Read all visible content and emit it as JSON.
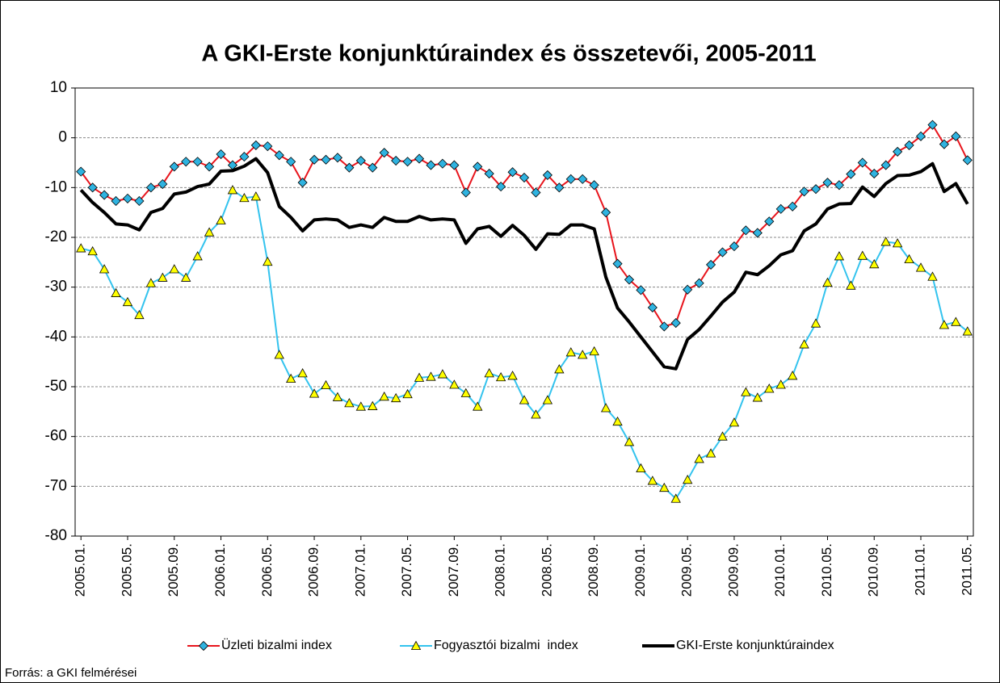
{
  "chart_data": {
    "type": "line",
    "title": "A GKI-Erste konjunktúraindex és összetevői, 2005-2011",
    "source": "Forrás: a GKI felmérései",
    "categories": [
      "2005.01.",
      null,
      null,
      null,
      "2005.05.",
      null,
      null,
      null,
      "2005.09.",
      null,
      null,
      null,
      "2006.01.",
      null,
      null,
      null,
      "2006.05.",
      null,
      null,
      null,
      "2006.09.",
      null,
      null,
      null,
      "2007.01.",
      null,
      null,
      null,
      "2007.05.",
      null,
      null,
      null,
      "2007.09.",
      null,
      null,
      null,
      "2008.01.",
      null,
      null,
      null,
      "2008.05.",
      null,
      null,
      null,
      "2008.09.",
      null,
      null,
      null,
      "2009.01.",
      null,
      null,
      null,
      "2009.05.",
      null,
      null,
      null,
      "2009.09.",
      null,
      null,
      null,
      "2010.01.",
      null,
      null,
      null,
      "2010.05.",
      null,
      null,
      null,
      "2010.09.",
      null,
      null,
      null,
      "2011.01.",
      null,
      null,
      null,
      "2011.05."
    ],
    "series": [
      {
        "name": "Üzleti bizalmi index",
        "color": "#e8141c",
        "marker": "diamond",
        "marker_color": "#2fb3e0",
        "values": [
          -6.8,
          -10,
          -11.5,
          -12.7,
          -12.2,
          -12.7,
          -10,
          -9.3,
          -5.8,
          -4.8,
          -4.8,
          -5.8,
          -3.3,
          -5.5,
          -3.8,
          -1.5,
          -1.7,
          -3.5,
          -4.8,
          -9,
          -4.4,
          -4.4,
          -4,
          -6,
          -4.6,
          -6,
          -3,
          -4.6,
          -4.8,
          -4.2,
          -5.5,
          -5.2,
          -5.5,
          -11,
          -5.8,
          -7.2,
          -9.8,
          -6.9,
          -8,
          -11,
          -7.5,
          -10,
          -8.3,
          -8.3,
          -9.5,
          -15,
          -25.3,
          -28.5,
          -30.6,
          -34.1,
          -37.9,
          -37.2,
          -30.5,
          -29.2,
          -25.5,
          -23,
          -21.8,
          -18.6,
          -19.1,
          -16.8,
          -14.3,
          -13.8,
          -10.8,
          -10.3,
          -9,
          -9.5,
          -7.3,
          -5,
          -7.2,
          -5.5,
          -2.8,
          -1.5,
          0.3,
          2.6,
          -1.3,
          0.3,
          -4.5
        ]
      },
      {
        "name": "Fogyasztói bizalmi  index",
        "color": "#33c3ee",
        "marker": "triangle",
        "marker_color": "#ffff00",
        "values": [
          -22.2,
          -22.8,
          -26.4,
          -31.2,
          -33,
          -35.6,
          -29.2,
          -28.1,
          -26.4,
          -28.1,
          -23.8,
          -19,
          -16.6,
          -10.5,
          -12.1,
          -11.8,
          -24.9,
          -43.6,
          -48.4,
          -47.3,
          -51.4,
          -49.7,
          -52.1,
          -53.3,
          -54,
          -53.9,
          -52,
          -52.3,
          -51.5,
          -48.2,
          -48,
          -47.5,
          -49.6,
          -51.3,
          -54,
          -47.3,
          -48.1,
          -47.8,
          -52.7,
          -55.6,
          -52.7,
          -46.5,
          -43.1,
          -43.6,
          -42.9,
          -54.3,
          -57,
          -61.1,
          -66.4,
          -68.9,
          -70.3,
          -72.5,
          -68.7,
          -64.5,
          -63.4,
          -60,
          -57.2,
          -51.1,
          -52.2,
          -50.4,
          -49.6,
          -47.8,
          -41.5,
          -37.3,
          -29.1,
          -23.8,
          -29.7,
          -23.7,
          -25.4,
          -20.9,
          -21.2,
          -24.4,
          -26.1,
          -27.9,
          -37.6,
          -37,
          -38.9
        ]
      },
      {
        "name": "GKI-Erste konjunktúraindex",
        "color": "#000000",
        "marker": "none",
        "values": [
          -10.5,
          -13,
          -15,
          -17.3,
          -17.5,
          -18.5,
          -15,
          -14.2,
          -11.3,
          -10.9,
          -9.8,
          -9.3,
          -6.7,
          -6.6,
          -5.7,
          -4.2,
          -7,
          -13.8,
          -16,
          -18.7,
          -16.5,
          -16.3,
          -16.5,
          -18,
          -17.5,
          -18,
          -16,
          -16.8,
          -16.8,
          -15.8,
          -16.5,
          -16.3,
          -16.5,
          -21.2,
          -18.3,
          -17.8,
          -19.8,
          -17.6,
          -19.6,
          -22.4,
          -19.3,
          -19.4,
          -17.5,
          -17.5,
          -18.3,
          -28,
          -34.2,
          -37,
          -40,
          -43,
          -46,
          -46.4,
          -40.5,
          -38.5,
          -35.8,
          -33,
          -31,
          -27,
          -27.5,
          -25.7,
          -23.5,
          -22.7,
          -18.7,
          -17.3,
          -14.3,
          -13.3,
          -13.2,
          -9.9,
          -11.8,
          -9.2,
          -7.6,
          -7.5,
          -6.8,
          -5.2,
          -10.8,
          -9.2,
          -13.3
        ]
      }
    ],
    "ylim": [
      -80,
      10
    ],
    "yticks": [
      -80,
      -70,
      -60,
      -50,
      -40,
      -30,
      -20,
      -10,
      0,
      10
    ],
    "grid": true,
    "legend": "bottom"
  }
}
